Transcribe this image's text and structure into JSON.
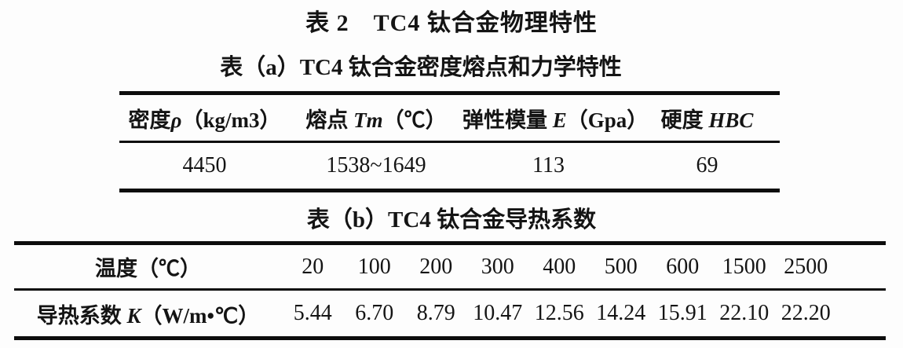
{
  "title": "表 2　TC4 钛合金物理特性",
  "table_a": {
    "caption": "表（a）TC4 钛合金密度熔点和力学特性",
    "headers": [
      {
        "pre": "密度",
        "sym": "ρ",
        "post": "（kg/m3）"
      },
      {
        "pre": "熔点 ",
        "sym": "Tm",
        "post": "（℃）"
      },
      {
        "pre": "弹性模量 ",
        "sym": "E",
        "post": "（Gpa）"
      },
      {
        "pre": "硬度 ",
        "sym": "HBC",
        "post": ""
      }
    ],
    "values": [
      "4450",
      "1538~1649",
      "113",
      "69"
    ]
  },
  "table_b": {
    "caption": "表（b）TC4 钛合金导热系数",
    "header_label": {
      "pre": "温度",
      "sym": "",
      "post": "（℃）"
    },
    "temperatures": [
      "20",
      "100",
      "200",
      "300",
      "400",
      "500",
      "600",
      "1500",
      "2500"
    ],
    "data_label": {
      "pre": "导热系数 ",
      "sym": "K",
      "post": "（W/m•℃）"
    },
    "conductivity": [
      "5.44",
      "6.70",
      "8.79",
      "10.47",
      "12.56",
      "14.24",
      "15.91",
      "22.10",
      "22.20"
    ]
  },
  "colors": {
    "text": "#141414",
    "rule": "#0d0d0d",
    "background": "#fdfdfd"
  }
}
